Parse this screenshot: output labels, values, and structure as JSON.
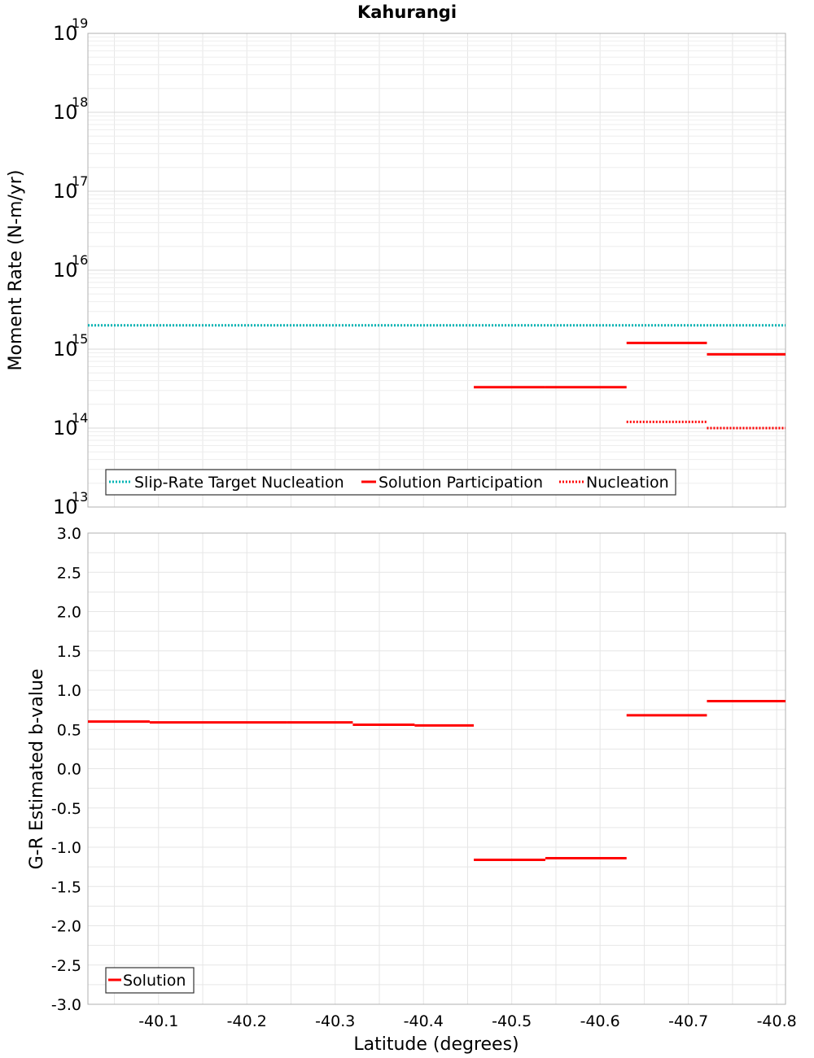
{
  "chart_data": [
    {
      "type": "line",
      "title": "Kahurangi",
      "xlabel": "Latitude (degrees)",
      "ylabel": "Moment Rate (N-m/yr)",
      "yscale": "log",
      "ylim": [
        10000000000000.0,
        1e+19
      ],
      "xlim": [
        -40.02,
        -40.81
      ],
      "grid": true,
      "y_ticks": [
        {
          "base": "10",
          "exp": "13"
        },
        {
          "base": "10",
          "exp": "14"
        },
        {
          "base": "10",
          "exp": "15"
        },
        {
          "base": "10",
          "exp": "16"
        },
        {
          "base": "10",
          "exp": "17"
        },
        {
          "base": "10",
          "exp": "18"
        },
        {
          "base": "10",
          "exp": "19"
        }
      ],
      "legend": {
        "position": "bottom-left",
        "entries": [
          {
            "label": "Slip-Rate Target Nucleation",
            "color": "#00b4b4",
            "style": "dotted"
          },
          {
            "label": "Solution Participation",
            "color": "#ff0000",
            "style": "solid"
          },
          {
            "label": "Nucleation",
            "color": "#ff0000",
            "style": "dotted"
          }
        ]
      },
      "series": [
        {
          "name": "Slip-Rate Target Nucleation",
          "color": "#00b4b4",
          "style": "dotted",
          "segments": [
            {
              "x0": -40.02,
              "x1": -40.81,
              "y": 2000000000000000.0
            }
          ]
        },
        {
          "name": "Solution Participation",
          "color": "#ff0000",
          "style": "solid",
          "segments": [
            {
              "x0": -40.457,
              "x1": -40.538,
              "y": 330000000000000.0
            },
            {
              "x0": -40.538,
              "x1": -40.63,
              "y": 330000000000000.0
            },
            {
              "x0": -40.63,
              "x1": -40.721,
              "y": 1200000000000000.0
            },
            {
              "x0": -40.721,
              "x1": -40.81,
              "y": 860000000000000.0
            }
          ]
        },
        {
          "name": "Nucleation",
          "color": "#ff0000",
          "style": "dotted",
          "segments": [
            {
              "x0": -40.63,
              "x1": -40.721,
              "y": 120000000000000.0
            },
            {
              "x0": -40.721,
              "x1": -40.81,
              "y": 100000000000000.0
            }
          ]
        }
      ]
    },
    {
      "type": "line",
      "xlabel": "Latitude (degrees)",
      "ylabel": "G-R Estimated b-value",
      "ylim": [
        -3.0,
        3.0
      ],
      "xlim": [
        -40.02,
        -40.81
      ],
      "grid": true,
      "y_ticks": [
        "3.0",
        "2.5",
        "2.0",
        "1.5",
        "1.0",
        "0.5",
        "0.0",
        "-0.5",
        "-1.0",
        "-1.5",
        "-2.0",
        "-2.5",
        "-3.0"
      ],
      "x_ticks": [
        "-40.1",
        "-40.2",
        "-40.3",
        "-40.4",
        "-40.5",
        "-40.6",
        "-40.7",
        "-40.8"
      ],
      "legend": {
        "position": "bottom-left",
        "entries": [
          {
            "label": "Solution",
            "color": "#ff0000",
            "style": "solid"
          }
        ]
      },
      "series": [
        {
          "name": "Solution",
          "color": "#ff0000",
          "style": "solid",
          "segments": [
            {
              "x0": -40.02,
              "x1": -40.09,
              "y": 0.6
            },
            {
              "x0": -40.09,
              "x1": -40.245,
              "y": 0.59
            },
            {
              "x0": -40.245,
              "x1": -40.32,
              "y": 0.59
            },
            {
              "x0": -40.32,
              "x1": -40.39,
              "y": 0.56
            },
            {
              "x0": -40.39,
              "x1": -40.457,
              "y": 0.55
            },
            {
              "x0": -40.457,
              "x1": -40.538,
              "y": -1.16
            },
            {
              "x0": -40.538,
              "x1": -40.63,
              "y": -1.14
            },
            {
              "x0": -40.63,
              "x1": -40.721,
              "y": 0.68
            },
            {
              "x0": -40.721,
              "x1": -40.81,
              "y": 0.86
            }
          ]
        }
      ]
    }
  ]
}
